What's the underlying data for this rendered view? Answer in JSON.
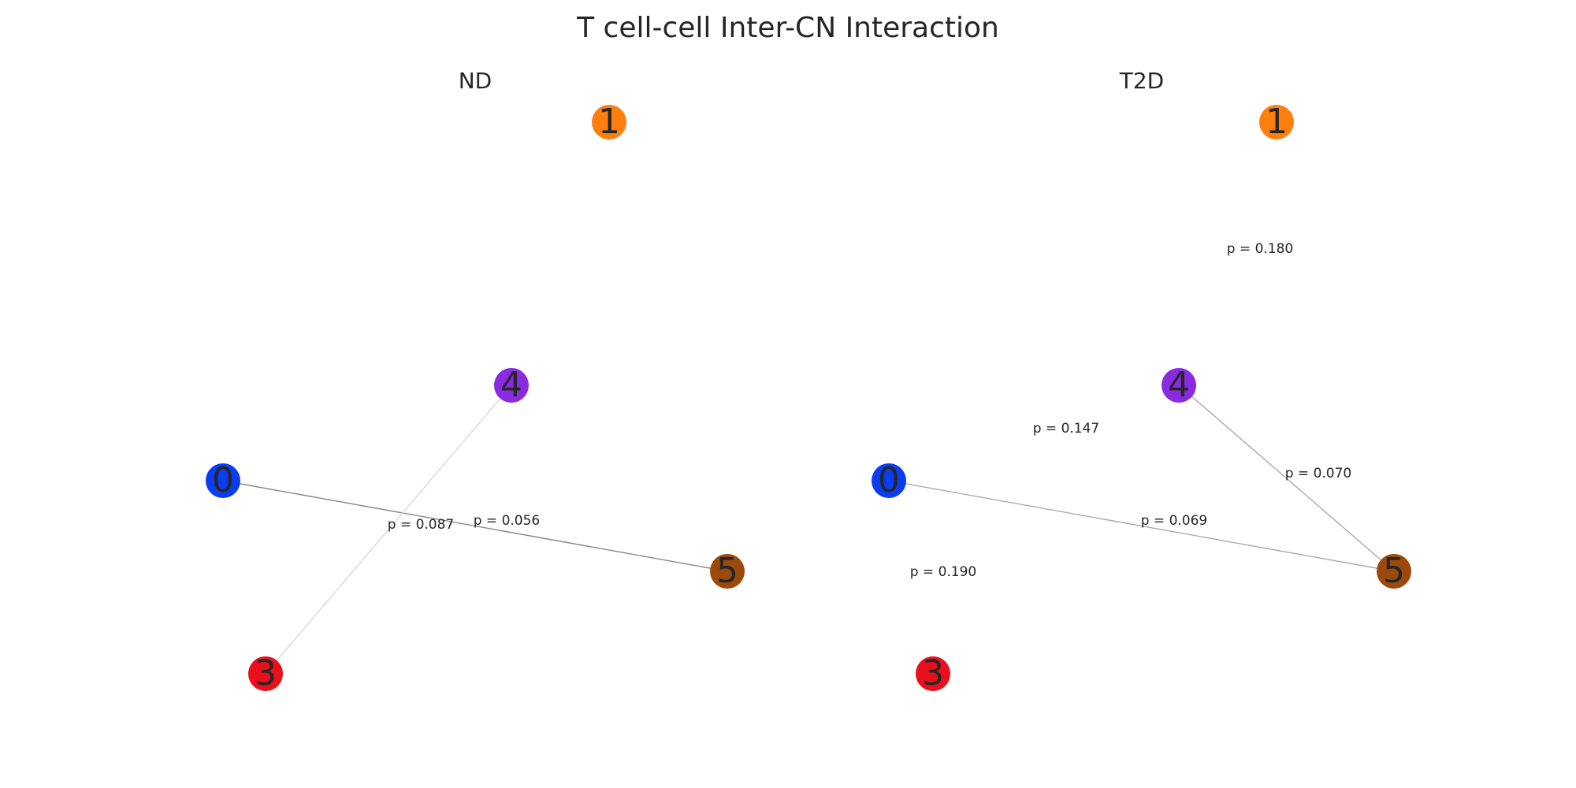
{
  "figure": {
    "title": "T cell-cell Inter-CN Interaction"
  },
  "panels": [
    {
      "id": "nd",
      "title": "ND",
      "nodes": [
        {
          "id": "0",
          "label": "0",
          "color": "#0a3cf0"
        },
        {
          "id": "1",
          "label": "1",
          "color": "#ff7f0e"
        },
        {
          "id": "3",
          "label": "3",
          "color": "#e8101c"
        },
        {
          "id": "4",
          "label": "4",
          "color": "#8a2be2"
        },
        {
          "id": "5",
          "label": "5",
          "color": "#9c4a0c"
        }
      ],
      "edges": [
        {
          "source": "0",
          "target": "5",
          "label": "p = 0.056",
          "color": "#888888"
        },
        {
          "source": "4",
          "target": "3",
          "label": "p = 0.087",
          "color": "#d9d9d9"
        }
      ]
    },
    {
      "id": "t2d",
      "title": "T2D",
      "nodes": [
        {
          "id": "0",
          "label": "0",
          "color": "#0a3cf0"
        },
        {
          "id": "1",
          "label": "1",
          "color": "#ff7f0e"
        },
        {
          "id": "3",
          "label": "3",
          "color": "#e8101c"
        },
        {
          "id": "4",
          "label": "4",
          "color": "#8a2be2"
        },
        {
          "id": "5",
          "label": "5",
          "color": "#9c4a0c"
        }
      ],
      "edges": [
        {
          "source": "0",
          "target": "5",
          "label": "p = 0.069",
          "color": "#aaaaaa"
        },
        {
          "source": "4",
          "target": "5",
          "label": "p = 0.070",
          "color": "#aaaaaa"
        },
        {
          "source": "0",
          "target": "4",
          "label": "p = 0.147",
          "color": "#ffffff"
        },
        {
          "source": "1",
          "target": "5",
          "label": "p = 0.180",
          "color": "#ffffff"
        },
        {
          "source": "0",
          "target": "3",
          "label": "p = 0.190",
          "color": "#ffffff"
        }
      ]
    }
  ]
}
